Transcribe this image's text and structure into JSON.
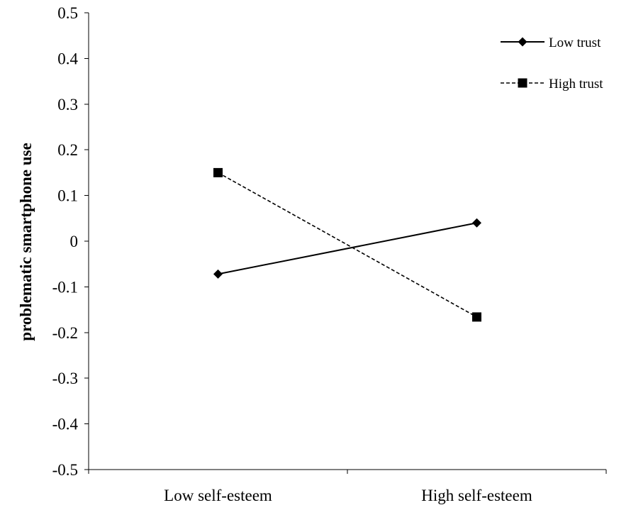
{
  "chart_data": {
    "type": "line",
    "categories": [
      "Low self-esteem",
      "High self-esteem"
    ],
    "ylabel": "problematic smartphone use",
    "xlabel": "",
    "ylim": [
      -0.5,
      0.5
    ],
    "y_ticks": [
      "0.5",
      "0.4",
      "0.3",
      "0.2",
      "0.1",
      "0",
      "-0.1",
      "-0.2",
      "-0.3",
      "-0.4",
      "-0.5"
    ],
    "y_tick_values": [
      0.5,
      0.4,
      0.3,
      0.2,
      0.1,
      0,
      -0.1,
      -0.2,
      -0.3,
      -0.4,
      -0.5
    ],
    "grid": false,
    "legend_position": "top-right",
    "series": [
      {
        "name": "Low trust",
        "values": [
          -0.072,
          0.04
        ],
        "line_style": "solid",
        "marker": "diamond",
        "color": "#000000"
      },
      {
        "name": "High trust",
        "values": [
          0.15,
          -0.166
        ],
        "line_style": "dashed",
        "marker": "square",
        "color": "#000000"
      }
    ]
  }
}
